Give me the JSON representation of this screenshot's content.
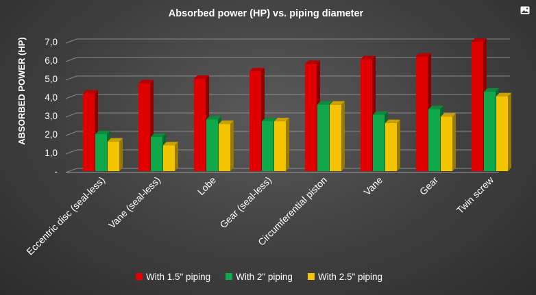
{
  "chart_data": {
    "type": "bar",
    "title": "Absorbed power (HP) vs. piping diameter",
    "ylabel": "ABSORBED POWER (HP)",
    "xlabel": "",
    "ylim": [
      0,
      7.5
    ],
    "yticks": [
      "-",
      "1,0",
      "2,0",
      "3,0",
      "4,0",
      "5,0",
      "6,0",
      "7,0"
    ],
    "grid": true,
    "legend": "bottom",
    "style": "3d",
    "categories": [
      "Eccentric disc (seal-less)",
      "Vane (seal-less)",
      "Lobe",
      "Gear (seal-less)",
      "Circumferential piston",
      "Vane",
      "Gear",
      "Twin screw"
    ],
    "series": [
      {
        "name": "With 1.5\" piping",
        "color": "#e00000",
        "values": [
          4.2,
          4.75,
          5.0,
          5.4,
          5.8,
          6.05,
          6.2,
          7.0
        ]
      },
      {
        "name": "With 2\" piping",
        "color": "#0fa84a",
        "values": [
          2.0,
          1.85,
          2.8,
          2.7,
          3.6,
          3.05,
          3.35,
          4.3
        ]
      },
      {
        "name": "With 2.5\" piping",
        "color": "#f5c400",
        "values": [
          1.6,
          1.4,
          2.55,
          2.7,
          3.6,
          2.6,
          2.95,
          4.05
        ]
      }
    ]
  },
  "icons": {
    "corner": "image-icon"
  }
}
